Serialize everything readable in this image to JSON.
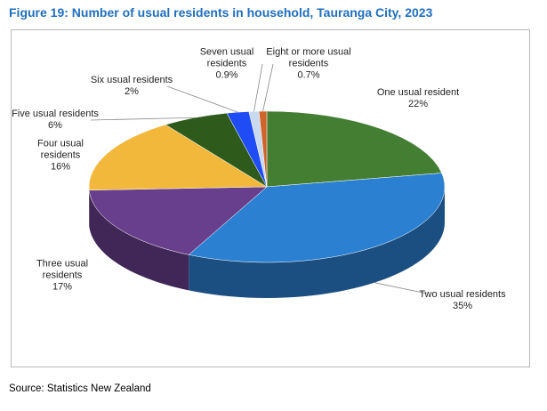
{
  "chart_data": {
    "type": "pie",
    "title": "Figure 19: Number of usual residents in household, Tauranga City, 2023",
    "categories": [
      "One usual resident",
      "Two usual residents",
      "Three usual residents",
      "Four usual residents",
      "Five usual residents",
      "Six usual residents",
      "Seven usual residents",
      "Eight or more usual residents"
    ],
    "values": [
      22,
      35,
      17,
      16,
      6,
      2,
      0.9,
      0.7
    ],
    "value_labels": [
      "22%",
      "35%",
      "17%",
      "16%",
      "6%",
      "2%",
      "0.9%",
      "0.7%"
    ],
    "colors": [
      "#437e32",
      "#2b80d2",
      "#683f8d",
      "#f2b83c",
      "#2e5a1c",
      "#1f4cf5",
      "#c9d9ef",
      "#d0652b"
    ],
    "source": "Source: Statistics New Zealand"
  }
}
